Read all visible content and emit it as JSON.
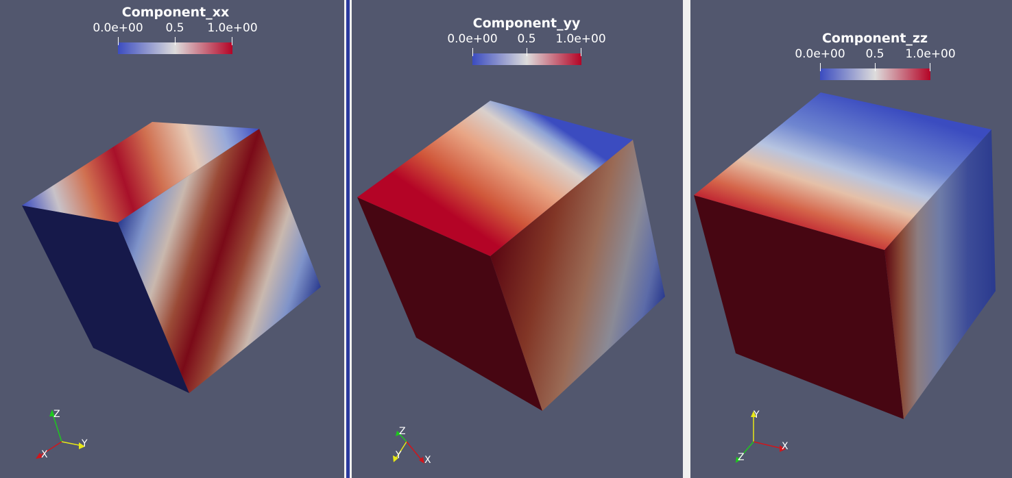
{
  "views": [
    {
      "bar": {
        "title": "Component_xx",
        "ticks": [
          "0.0e+00",
          "0.5",
          "1.0e+00"
        ]
      },
      "axes": {
        "labels": [
          "X",
          "Y",
          "Z"
        ]
      }
    },
    {
      "bar": {
        "title": "Component_yy",
        "ticks": [
          "0.0e+00",
          "0.5",
          "1.0e+00"
        ]
      },
      "axes": {
        "labels": [
          "X",
          "Y",
          "Z"
        ]
      }
    },
    {
      "bar": {
        "title": "Component_zz",
        "ticks": [
          "0.0e+00",
          "0.5",
          "1.0e+00"
        ]
      },
      "axes": {
        "labels": [
          "X",
          "Y",
          "Z"
        ]
      }
    }
  ],
  "colormap": {
    "low": "#3b4cc0",
    "mid": "#dddcdc",
    "high": "#b40426"
  },
  "axis_colors": {
    "x": "#d0161c",
    "y": "#e8e816",
    "z": "#1ec81e"
  },
  "background": "#52576e"
}
